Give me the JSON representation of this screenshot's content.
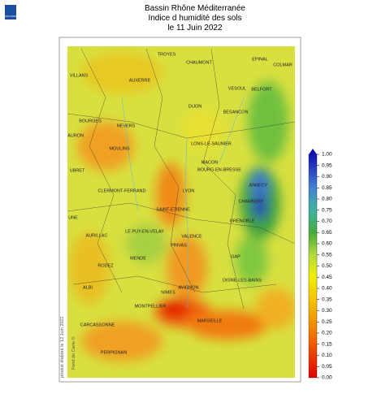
{
  "header": {
    "lines": [
      "Bassin Rhône Méditerranée",
      "Indice d humidité des sols",
      "le 11 Juin 2022"
    ]
  },
  "logo": "MÉTÉO FRANCE",
  "side_text": [
    "produit élaboré le 12 Juin 2022",
    "Fond de Carte ©"
  ],
  "cities": [
    "TROYES",
    "CHAUMONT",
    "EPINAL",
    "COLMAR",
    "VILLANS",
    "AUXERRE",
    "VESOUL",
    "BELFORT",
    "DIJON",
    "BESANCON",
    "BOURGES",
    "NEVERS",
    "AURON",
    "MOULINS",
    "LONS-LE-SAUNIER",
    "UBRET",
    "MACON",
    "BOURG-EN-BRESSE",
    "ANNECY",
    "LYON",
    "CLERMONT-FERRAND",
    "CHAMBERY",
    "SAINT-ETIENNE",
    "GRENOBLE",
    "UNE",
    "AURILLAC",
    "LE PUY-EN-VELAY",
    "VALENCE",
    "PRIVAS",
    "GAP",
    "RODEZ",
    "MENDE",
    "DIGNE-LES-BAINS",
    "ALBI",
    "AVIGNON",
    "NIMES",
    "MONTPELLIER",
    "MARSEILLE",
    "CARCASSONNE",
    "PERPIGNAN"
  ],
  "colorbar": {
    "ticks": [
      {
        "value": 1,
        "label": "1.00"
      },
      {
        "value": 0.95,
        "label": "0.95"
      },
      {
        "value": 0.9,
        "label": "0.90"
      },
      {
        "value": 0.85,
        "label": "0.85"
      },
      {
        "value": 0.8,
        "label": "0.80"
      },
      {
        "value": 0.75,
        "label": "0.75"
      },
      {
        "value": 0.7,
        "label": "0.70"
      },
      {
        "value": 0.65,
        "label": "0.65"
      },
      {
        "value": 0.6,
        "label": "0.60"
      },
      {
        "value": 0.55,
        "label": "0.55"
      },
      {
        "value": 0.5,
        "label": "0.50"
      },
      {
        "value": 0.45,
        "label": "0.45"
      },
      {
        "value": 0.4,
        "label": "0.40"
      },
      {
        "value": 0.35,
        "label": "0.35"
      },
      {
        "value": 0.3,
        "label": "0.30"
      },
      {
        "value": 0.25,
        "label": "0.25"
      },
      {
        "value": 0.2,
        "label": "0.20"
      },
      {
        "value": 0.15,
        "label": "0.15"
      },
      {
        "value": 0.1,
        "label": "0.10"
      },
      {
        "value": 0.05,
        "label": "0.05"
      },
      {
        "value": 0,
        "label": "0.00"
      }
    ],
    "colors": [
      {
        "value": 0,
        "color": "#e00000"
      },
      {
        "value": 0.15,
        "color": "#f05a00"
      },
      {
        "value": 0.25,
        "color": "#f09400"
      },
      {
        "value": 0.35,
        "color": "#f5c400"
      },
      {
        "value": 0.45,
        "color": "#f0ee00"
      },
      {
        "value": 0.55,
        "color": "#b4dc3c"
      },
      {
        "value": 0.65,
        "color": "#46aa3c"
      },
      {
        "value": 0.75,
        "color": "#3cb4a0"
      },
      {
        "value": 0.85,
        "color": "#4682d2"
      },
      {
        "value": 1,
        "color": "#1010b4"
      }
    ]
  }
}
